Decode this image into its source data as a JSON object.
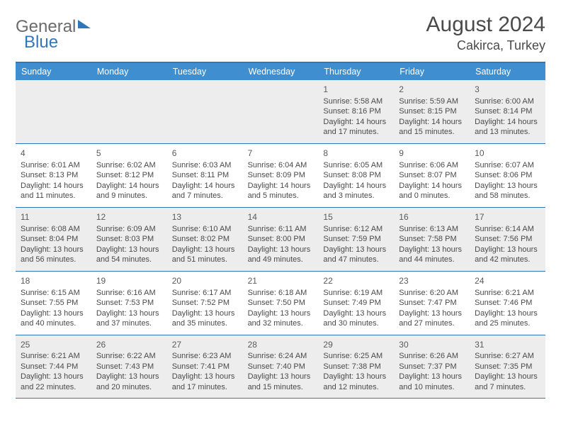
{
  "brand": {
    "name_a": "General",
    "name_b": "Blue"
  },
  "title": "August 2024",
  "location": "Cakirca, Turkey",
  "dow": [
    "Sunday",
    "Monday",
    "Tuesday",
    "Wednesday",
    "Thursday",
    "Friday",
    "Saturday"
  ],
  "colors": {
    "header_bar": "#3e8ed0",
    "rule": "#2f77bb",
    "alt_row": "#ededed",
    "text": "#4a4a4a"
  },
  "weeks": [
    [
      null,
      null,
      null,
      null,
      {
        "n": "1",
        "sunrise": "Sunrise: 5:58 AM",
        "sunset": "Sunset: 8:16 PM",
        "daylight": "Daylight: 14 hours and 17 minutes."
      },
      {
        "n": "2",
        "sunrise": "Sunrise: 5:59 AM",
        "sunset": "Sunset: 8:15 PM",
        "daylight": "Daylight: 14 hours and 15 minutes."
      },
      {
        "n": "3",
        "sunrise": "Sunrise: 6:00 AM",
        "sunset": "Sunset: 8:14 PM",
        "daylight": "Daylight: 14 hours and 13 minutes."
      }
    ],
    [
      {
        "n": "4",
        "sunrise": "Sunrise: 6:01 AM",
        "sunset": "Sunset: 8:13 PM",
        "daylight": "Daylight: 14 hours and 11 minutes."
      },
      {
        "n": "5",
        "sunrise": "Sunrise: 6:02 AM",
        "sunset": "Sunset: 8:12 PM",
        "daylight": "Daylight: 14 hours and 9 minutes."
      },
      {
        "n": "6",
        "sunrise": "Sunrise: 6:03 AM",
        "sunset": "Sunset: 8:11 PM",
        "daylight": "Daylight: 14 hours and 7 minutes."
      },
      {
        "n": "7",
        "sunrise": "Sunrise: 6:04 AM",
        "sunset": "Sunset: 8:09 PM",
        "daylight": "Daylight: 14 hours and 5 minutes."
      },
      {
        "n": "8",
        "sunrise": "Sunrise: 6:05 AM",
        "sunset": "Sunset: 8:08 PM",
        "daylight": "Daylight: 14 hours and 3 minutes."
      },
      {
        "n": "9",
        "sunrise": "Sunrise: 6:06 AM",
        "sunset": "Sunset: 8:07 PM",
        "daylight": "Daylight: 14 hours and 0 minutes."
      },
      {
        "n": "10",
        "sunrise": "Sunrise: 6:07 AM",
        "sunset": "Sunset: 8:06 PM",
        "daylight": "Daylight: 13 hours and 58 minutes."
      }
    ],
    [
      {
        "n": "11",
        "sunrise": "Sunrise: 6:08 AM",
        "sunset": "Sunset: 8:04 PM",
        "daylight": "Daylight: 13 hours and 56 minutes."
      },
      {
        "n": "12",
        "sunrise": "Sunrise: 6:09 AM",
        "sunset": "Sunset: 8:03 PM",
        "daylight": "Daylight: 13 hours and 54 minutes."
      },
      {
        "n": "13",
        "sunrise": "Sunrise: 6:10 AM",
        "sunset": "Sunset: 8:02 PM",
        "daylight": "Daylight: 13 hours and 51 minutes."
      },
      {
        "n": "14",
        "sunrise": "Sunrise: 6:11 AM",
        "sunset": "Sunset: 8:00 PM",
        "daylight": "Daylight: 13 hours and 49 minutes."
      },
      {
        "n": "15",
        "sunrise": "Sunrise: 6:12 AM",
        "sunset": "Sunset: 7:59 PM",
        "daylight": "Daylight: 13 hours and 47 minutes."
      },
      {
        "n": "16",
        "sunrise": "Sunrise: 6:13 AM",
        "sunset": "Sunset: 7:58 PM",
        "daylight": "Daylight: 13 hours and 44 minutes."
      },
      {
        "n": "17",
        "sunrise": "Sunrise: 6:14 AM",
        "sunset": "Sunset: 7:56 PM",
        "daylight": "Daylight: 13 hours and 42 minutes."
      }
    ],
    [
      {
        "n": "18",
        "sunrise": "Sunrise: 6:15 AM",
        "sunset": "Sunset: 7:55 PM",
        "daylight": "Daylight: 13 hours and 40 minutes."
      },
      {
        "n": "19",
        "sunrise": "Sunrise: 6:16 AM",
        "sunset": "Sunset: 7:53 PM",
        "daylight": "Daylight: 13 hours and 37 minutes."
      },
      {
        "n": "20",
        "sunrise": "Sunrise: 6:17 AM",
        "sunset": "Sunset: 7:52 PM",
        "daylight": "Daylight: 13 hours and 35 minutes."
      },
      {
        "n": "21",
        "sunrise": "Sunrise: 6:18 AM",
        "sunset": "Sunset: 7:50 PM",
        "daylight": "Daylight: 13 hours and 32 minutes."
      },
      {
        "n": "22",
        "sunrise": "Sunrise: 6:19 AM",
        "sunset": "Sunset: 7:49 PM",
        "daylight": "Daylight: 13 hours and 30 minutes."
      },
      {
        "n": "23",
        "sunrise": "Sunrise: 6:20 AM",
        "sunset": "Sunset: 7:47 PM",
        "daylight": "Daylight: 13 hours and 27 minutes."
      },
      {
        "n": "24",
        "sunrise": "Sunrise: 6:21 AM",
        "sunset": "Sunset: 7:46 PM",
        "daylight": "Daylight: 13 hours and 25 minutes."
      }
    ],
    [
      {
        "n": "25",
        "sunrise": "Sunrise: 6:21 AM",
        "sunset": "Sunset: 7:44 PM",
        "daylight": "Daylight: 13 hours and 22 minutes."
      },
      {
        "n": "26",
        "sunrise": "Sunrise: 6:22 AM",
        "sunset": "Sunset: 7:43 PM",
        "daylight": "Daylight: 13 hours and 20 minutes."
      },
      {
        "n": "27",
        "sunrise": "Sunrise: 6:23 AM",
        "sunset": "Sunset: 7:41 PM",
        "daylight": "Daylight: 13 hours and 17 minutes."
      },
      {
        "n": "28",
        "sunrise": "Sunrise: 6:24 AM",
        "sunset": "Sunset: 7:40 PM",
        "daylight": "Daylight: 13 hours and 15 minutes."
      },
      {
        "n": "29",
        "sunrise": "Sunrise: 6:25 AM",
        "sunset": "Sunset: 7:38 PM",
        "daylight": "Daylight: 13 hours and 12 minutes."
      },
      {
        "n": "30",
        "sunrise": "Sunrise: 6:26 AM",
        "sunset": "Sunset: 7:37 PM",
        "daylight": "Daylight: 13 hours and 10 minutes."
      },
      {
        "n": "31",
        "sunrise": "Sunrise: 6:27 AM",
        "sunset": "Sunset: 7:35 PM",
        "daylight": "Daylight: 13 hours and 7 minutes."
      }
    ]
  ]
}
